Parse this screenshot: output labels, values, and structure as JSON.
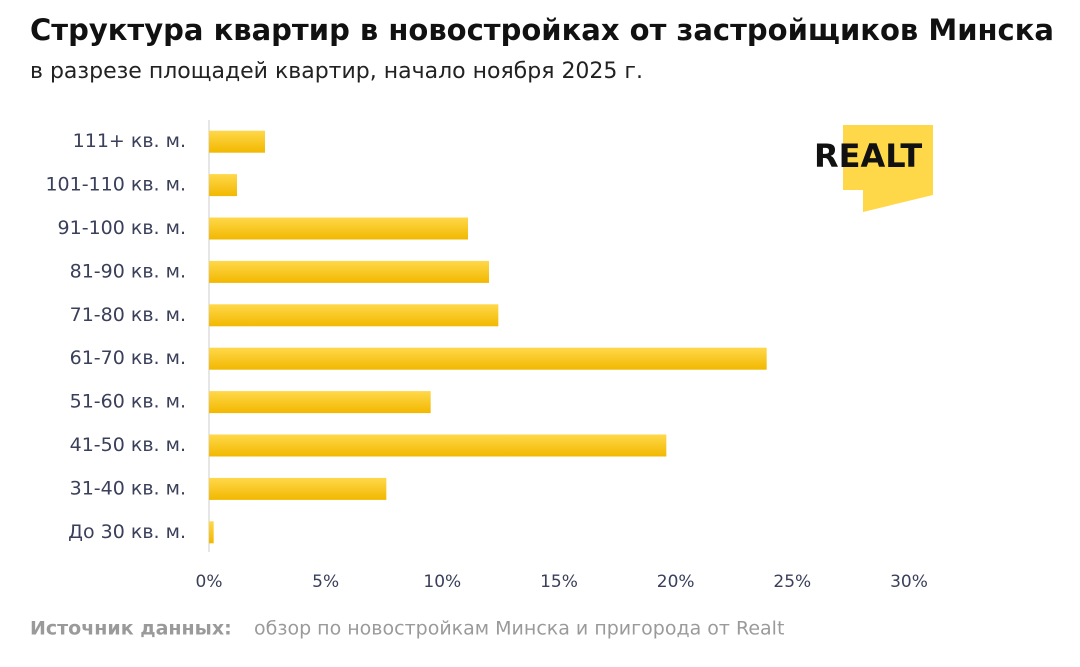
{
  "chart_data": {
    "type": "bar",
    "orientation": "horizontal",
    "title": "Структура квартир в новостройках от застройщиков Минска",
    "subtitle": "в разрезе площадей квартир, начало ноября 2025 г.",
    "categories": [
      "111+ кв. м.",
      "101-110 кв. м.",
      "91-100 кв. м.",
      "81-90 кв. м.",
      "71-80 кв. м.",
      "61-70 кв. м.",
      "51-60 кв. м.",
      "41-50 кв. м.",
      "31-40 кв. м.",
      "До 30 кв. м."
    ],
    "values": [
      2.4,
      1.2,
      11.1,
      12.0,
      12.4,
      23.9,
      9.5,
      19.6,
      7.6,
      0.2
    ],
    "color": "#ffc800",
    "xlim": [
      0,
      30
    ],
    "xticks": [
      {
        "value": 0,
        "label": "0%"
      },
      {
        "value": 5,
        "label": "5%"
      },
      {
        "value": 10,
        "label": "10%"
      },
      {
        "value": 15,
        "label": "15%"
      },
      {
        "value": 20,
        "label": "20%"
      },
      {
        "value": 25,
        "label": "25%"
      },
      {
        "value": 30,
        "label": "30%"
      }
    ],
    "grid": false,
    "source_label": "Источник данных:",
    "source_text": "обзор по новостройкам Минска и пригорода от Realt",
    "logo": "REALT"
  }
}
